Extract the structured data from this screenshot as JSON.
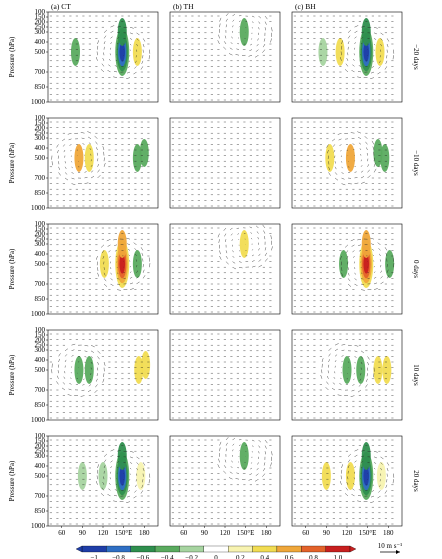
{
  "chart_data": {
    "type": "heatmap",
    "description_units": {
      "colorbar_ticks": [
        "−1",
        "−0.8",
        "−0.6",
        "−0.4",
        "−0.2",
        "0",
        "0.2",
        "0.4",
        "0.6",
        "0.8",
        "1.0"
      ],
      "colorbar_colors": [
        "#1f3ea8",
        "#2f6fc4",
        "#2f8f4e",
        "#5aab5f",
        "#a6d4a0",
        "#ffffff",
        "#f7f3b0",
        "#f1dc52",
        "#efa73a",
        "#e3622a",
        "#c81f1f"
      ],
      "reference_vector_label": "10 m s⁻¹"
    },
    "columns": [
      {
        "title": "(a)  CT"
      },
      {
        "title": "(b)  TH"
      },
      {
        "title": "(c)  BH"
      }
    ],
    "rows": [
      {
        "lag_label": "−20 days"
      },
      {
        "lag_label": "−10 days"
      },
      {
        "lag_label": "0 days"
      },
      {
        "lag_label": "10 days"
      },
      {
        "lag_label": "20 days"
      }
    ],
    "ylabel": "Pressure (hPa)",
    "y_ticks": [
      "100",
      "150",
      "200",
      "250",
      "300",
      "400",
      "500",
      "700",
      "850",
      "1000"
    ],
    "x_ticks": [
      "60",
      "90",
      "120",
      "150°E",
      "180"
    ],
    "panels": [
      [
        {
          "blobs": [
            {
              "lon": 148,
              "lev": 500,
              "value": -0.95
            },
            {
              "lon": 148,
              "lev": 300,
              "value": -0.55
            },
            {
              "lon": 80,
              "lev": 500,
              "value": -0.3
            },
            {
              "lon": 170,
              "lev": 500,
              "value": 0.4
            }
          ]
        },
        {
          "blobs": [
            {
              "lon": 148,
              "lev": 300,
              "value": -0.45
            }
          ]
        },
        {
          "blobs": [
            {
              "lon": 148,
              "lev": 500,
              "value": -0.95
            },
            {
              "lon": 148,
              "lev": 300,
              "value": -0.55
            },
            {
              "lon": 110,
              "lev": 500,
              "value": 0.45
            },
            {
              "lon": 168,
              "lev": 500,
              "value": 0.45
            },
            {
              "lon": 85,
              "lev": 500,
              "value": -0.25
            }
          ]
        }
      ],
      [
        {
          "blobs": [
            {
              "lon": 85,
              "lev": 500,
              "value": 0.5
            },
            {
              "lon": 100,
              "lev": 500,
              "value": 0.35
            },
            {
              "lon": 170,
              "lev": 500,
              "value": -0.45
            },
            {
              "lon": 180,
              "lev": 450,
              "value": -0.4
            }
          ]
        },
        {
          "blobs": []
        },
        {
          "blobs": [
            {
              "lon": 125,
              "lev": 500,
              "value": 0.5
            },
            {
              "lon": 95,
              "lev": 500,
              "value": 0.3
            },
            {
              "lon": 175,
              "lev": 500,
              "value": -0.4
            },
            {
              "lon": 165,
              "lev": 450,
              "value": -0.3
            }
          ]
        }
      ],
      [
        {
          "blobs": [
            {
              "lon": 148,
              "lev": 500,
              "value": 0.95
            },
            {
              "lon": 148,
              "lev": 300,
              "value": 0.55
            },
            {
              "lon": 122,
              "lev": 500,
              "value": 0.35
            },
            {
              "lon": 170,
              "lev": 500,
              "value": -0.4
            }
          ]
        },
        {
          "blobs": [
            {
              "lon": 148,
              "lev": 300,
              "value": 0.45
            }
          ]
        },
        {
          "blobs": [
            {
              "lon": 148,
              "lev": 500,
              "value": 0.95
            },
            {
              "lon": 148,
              "lev": 300,
              "value": 0.5
            },
            {
              "lon": 115,
              "lev": 500,
              "value": -0.45
            },
            {
              "lon": 182,
              "lev": 500,
              "value": -0.35
            }
          ]
        }
      ],
      [
        {
          "blobs": [
            {
              "lon": 85,
              "lev": 500,
              "value": -0.45
            },
            {
              "lon": 100,
              "lev": 500,
              "value": -0.3
            },
            {
              "lon": 172,
              "lev": 500,
              "value": 0.45
            },
            {
              "lon": 182,
              "lev": 450,
              "value": 0.35
            }
          ]
        },
        {
          "blobs": []
        },
        {
          "blobs": [
            {
              "lon": 120,
              "lev": 500,
              "value": -0.4
            },
            {
              "lon": 140,
              "lev": 500,
              "value": -0.3
            },
            {
              "lon": 165,
              "lev": 500,
              "value": 0.35
            },
            {
              "lon": 178,
              "lev": 500,
              "value": 0.4
            }
          ]
        }
      ],
      [
        {
          "blobs": [
            {
              "lon": 148,
              "lev": 500,
              "value": -0.95
            },
            {
              "lon": 148,
              "lev": 300,
              "value": -0.55
            },
            {
              "lon": 90,
              "lev": 500,
              "value": -0.25
            },
            {
              "lon": 120,
              "lev": 500,
              "value": -0.2
            },
            {
              "lon": 175,
              "lev": 500,
              "value": 0.25
            }
          ]
        },
        {
          "blobs": [
            {
              "lon": 148,
              "lev": 300,
              "value": -0.45
            }
          ]
        },
        {
          "blobs": [
            {
              "lon": 148,
              "lev": 500,
              "value": -0.95
            },
            {
              "lon": 148,
              "lev": 300,
              "value": -0.6
            },
            {
              "lon": 90,
              "lev": 500,
              "value": 0.45
            },
            {
              "lon": 125,
              "lev": 500,
              "value": 0.35
            },
            {
              "lon": 170,
              "lev": 500,
              "value": 0.25
            }
          ]
        }
      ]
    ],
    "xlim": [
      40,
      200
    ],
    "ylim": [
      1000,
      100
    ]
  }
}
